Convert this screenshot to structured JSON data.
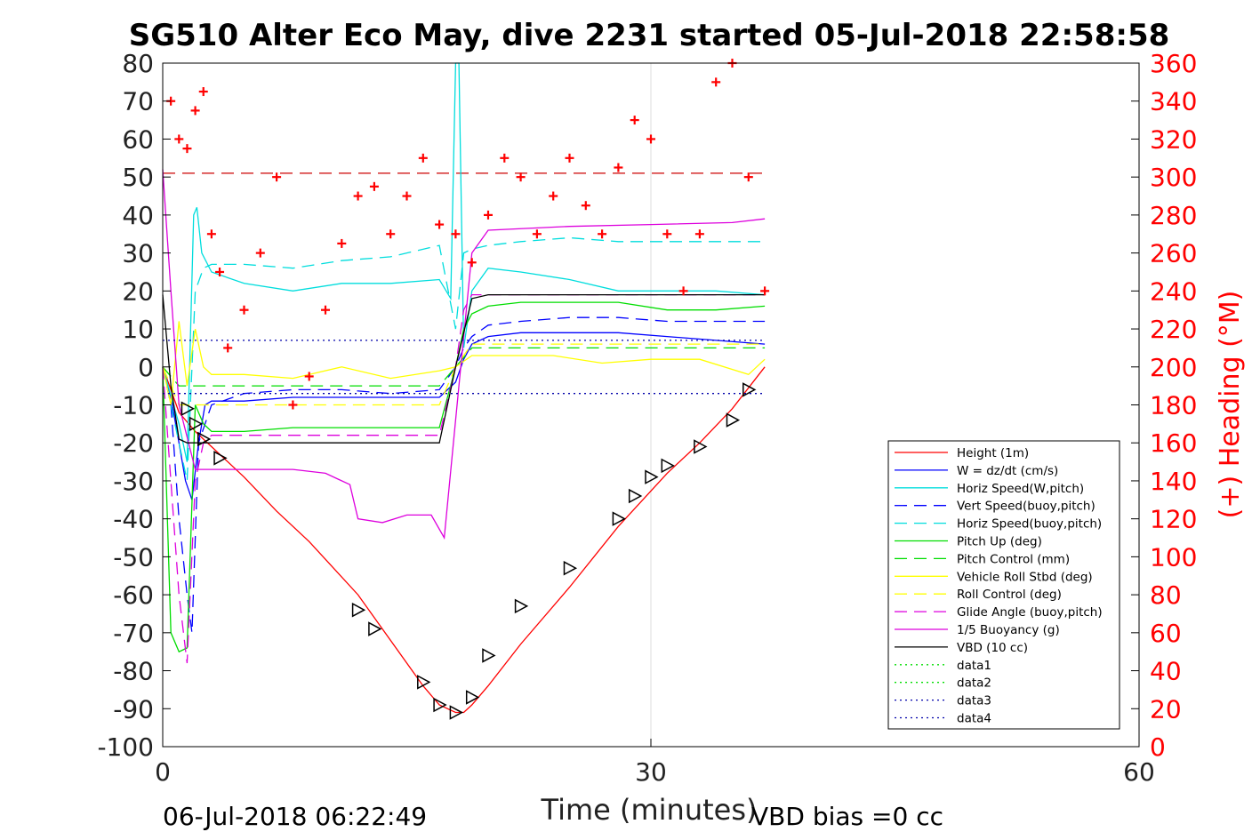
{
  "chart_data": {
    "type": "line",
    "title": "SG510 Alter Eco May, dive 2231 started 05-Jul-2018 22:58:58",
    "xlabel": "Time (minutes)",
    "ylabel": "",
    "y2label": "(+) Heading (°M)",
    "xlim": [
      0,
      60
    ],
    "ylim": [
      -100,
      80
    ],
    "y2lim": [
      0,
      360
    ],
    "xticks": [
      "0",
      "30",
      "60"
    ],
    "yticks": [
      "80",
      "70",
      "60",
      "50",
      "40",
      "30",
      "20",
      "10",
      "0",
      "-10",
      "-20",
      "-30",
      "-40",
      "-50",
      "-60",
      "-70",
      "-80",
      "-90",
      "-100"
    ],
    "y2ticks": [
      "360",
      "340",
      "320",
      "300",
      "280",
      "260",
      "240",
      "220",
      "200",
      "180",
      "160",
      "140",
      "120",
      "100",
      "80",
      "60",
      "40",
      "20",
      "0"
    ],
    "grid": "x-only",
    "legend_position": "lower-right",
    "footer_left": "06-Jul-2018 06:22:49",
    "footer_right": "VBD bias =0 cc",
    "colors": {
      "heading": "#ff0000"
    },
    "series": [
      {
        "name": "Height (1m)",
        "color": "#ff0000",
        "style": "solid",
        "x": [
          0,
          1,
          2,
          3,
          5,
          7,
          9,
          12,
          14,
          16,
          17,
          18,
          18.5,
          19,
          20,
          22,
          25,
          28,
          31,
          33,
          35,
          37
        ],
        "y": [
          0,
          -12,
          -17,
          -21,
          -29,
          -38,
          -46,
          -60,
          -72,
          -84,
          -89,
          -91,
          -91,
          -89,
          -84,
          -73,
          -58,
          -42,
          -28,
          -20,
          -11,
          0
        ]
      },
      {
        "name": "W = dz/dt (cm/s)",
        "color": "#0000ff",
        "style": "solid",
        "x": [
          0,
          0.5,
          1,
          1.4,
          1.8,
          2.2,
          2.6,
          3,
          5,
          8,
          11,
          14,
          17,
          17.5,
          18,
          18.5,
          19,
          20,
          22,
          25,
          28,
          31,
          34,
          37
        ],
        "y": [
          0,
          -8,
          -20,
          -30,
          -35,
          -20,
          -10,
          -9,
          -9,
          -8,
          -8,
          -8,
          -8,
          -6,
          -4,
          2,
          6,
          8,
          9,
          9,
          9,
          8,
          7,
          6
        ]
      },
      {
        "name": "Horiz Speed(W,pitch)",
        "color": "#00dddd",
        "style": "solid",
        "x": [
          0,
          1,
          1.5,
          1.9,
          2.1,
          2.4,
          3,
          5,
          8,
          11,
          14,
          17,
          17.7,
          18,
          18.2,
          18.5,
          19,
          20,
          22,
          25,
          28,
          31,
          34,
          37
        ],
        "y": [
          0,
          -15,
          -25,
          40,
          42,
          30,
          25,
          22,
          20,
          22,
          22,
          23,
          18,
          80,
          80,
          5,
          20,
          26,
          25,
          23,
          20,
          20,
          20,
          19
        ]
      },
      {
        "name": "Vert Speed(buoy,pitch)",
        "color": "#0000ff",
        "style": "dash",
        "x": [
          0,
          0.5,
          1,
          1.5,
          1.8,
          2.2,
          3,
          5,
          8,
          11,
          14,
          17,
          18,
          18.5,
          19,
          20,
          22,
          25,
          28,
          31,
          34,
          37
        ],
        "y": [
          0,
          -10,
          -40,
          -60,
          -70,
          -20,
          -10,
          -7,
          -6,
          -6,
          -7,
          -6,
          0,
          5,
          8,
          11,
          12,
          13,
          13,
          12,
          12,
          12
        ]
      },
      {
        "name": "Horiz Speed(buoy,pitch)",
        "color": "#00dddd",
        "style": "dash",
        "x": [
          0,
          1,
          1.5,
          2,
          2.5,
          3,
          5,
          8,
          11,
          14,
          17,
          18,
          18.5,
          19,
          20,
          22,
          25,
          28,
          31,
          34,
          37
        ],
        "y": [
          0,
          -20,
          -30,
          20,
          26,
          27,
          27,
          26,
          28,
          29,
          32,
          10,
          30,
          31,
          32,
          33,
          34,
          33,
          33,
          33,
          33
        ]
      },
      {
        "name": "Pitch Up (deg)",
        "color": "#00dd00",
        "style": "solid",
        "x": [
          0,
          0.5,
          1,
          1.5,
          2,
          2.5,
          3,
          5,
          8,
          11,
          14,
          17,
          18,
          18.5,
          19,
          20,
          22,
          25,
          28,
          31,
          34,
          37
        ],
        "y": [
          0,
          -70,
          -75,
          -74,
          -10,
          -15,
          -17,
          -17,
          -16,
          -16,
          -16,
          -16,
          0,
          10,
          14,
          16,
          17,
          17,
          17,
          15,
          15,
          16
        ]
      },
      {
        "name": "Pitch Control (mm)",
        "color": "#00dd00",
        "style": "dash",
        "x": [
          0,
          1,
          2,
          3,
          17,
          18,
          19,
          37
        ],
        "y": [
          0,
          -5,
          -5,
          -5,
          -5,
          0,
          5,
          5
        ]
      },
      {
        "name": "Vehicle Roll Stbd (deg)",
        "color": "#ffff00",
        "style": "solid",
        "x": [
          0,
          0.5,
          1,
          1.5,
          2,
          2.5,
          3,
          5,
          8,
          11,
          14,
          17,
          18,
          19,
          21,
          24,
          27,
          30,
          33,
          36,
          37
        ],
        "y": [
          0,
          -10,
          12,
          -5,
          10,
          0,
          -2,
          -2,
          -3,
          0,
          -3,
          -1,
          0,
          3,
          3,
          3,
          1,
          2,
          2,
          -2,
          2
        ]
      },
      {
        "name": "Roll Control (deg)",
        "color": "#ffff00",
        "style": "dash",
        "x": [
          0,
          1,
          2,
          3,
          17,
          18,
          19,
          37
        ],
        "y": [
          0,
          -10,
          -10,
          -10,
          -10,
          0,
          6,
          6
        ]
      },
      {
        "name": "Glide Angle (buoy,pitch)",
        "color": "#dd00dd",
        "style": "dash",
        "x": [
          0,
          1,
          1.5,
          2,
          2.5,
          3,
          17,
          18,
          18.5,
          19,
          37
        ],
        "y": [
          0,
          -60,
          -78,
          -30,
          -20,
          -18,
          -18,
          0,
          15,
          19,
          19
        ]
      },
      {
        "name": "1/5 Buoyancy (g)",
        "color": "#dd00dd",
        "style": "solid",
        "x": [
          0,
          0.5,
          1,
          2,
          3,
          8,
          10,
          11.5,
          12,
          13.5,
          15,
          16.5,
          17.3,
          18.2,
          19,
          20,
          25,
          30,
          35,
          37
        ],
        "y": [
          52,
          20,
          -10,
          -27,
          -27,
          -27,
          -28,
          -31,
          -40,
          -41,
          -39,
          -39,
          -45,
          -5,
          30,
          36,
          37,
          37.5,
          38,
          39
        ]
      },
      {
        "name": "VBD (10 cc)",
        "color": "#000000",
        "style": "solid",
        "x": [
          0,
          0.5,
          1,
          1.5,
          2,
          17,
          18,
          19,
          20,
          37
        ],
        "y": [
          19,
          -5,
          -19,
          -20,
          -20,
          -20,
          0,
          18,
          19,
          19
        ]
      },
      {
        "name": "data1",
        "color": "#00dd00",
        "style": "dot",
        "x": [],
        "y": []
      },
      {
        "name": "data2",
        "color": "#00dd00",
        "style": "dot",
        "x": [],
        "y": []
      },
      {
        "name": "data3",
        "color": "#0000aa",
        "style": "dot",
        "x": [
          0,
          37
        ],
        "y": [
          7,
          7
        ]
      },
      {
        "name": "data4",
        "color": "#0000aa",
        "style": "dot",
        "x": [
          0,
          37
        ],
        "y": [
          -7,
          -7
        ]
      }
    ],
    "reference_lines": [
      {
        "axis": "y2",
        "value": 302,
        "color": "#cc0000",
        "style": "dash",
        "x": [
          0,
          37
        ]
      }
    ],
    "heading": {
      "axis": "y2",
      "marker": "+",
      "color": "#ff0000",
      "x": [
        0.5,
        1,
        1.5,
        2,
        2.5,
        3,
        3.5,
        4,
        5,
        6,
        7,
        8,
        9,
        10,
        11,
        12,
        13,
        14,
        15,
        16,
        17,
        18,
        19,
        20,
        21,
        22,
        23,
        24,
        25,
        26,
        27,
        28,
        29,
        30,
        31,
        32,
        33,
        34,
        35,
        36,
        37
      ],
      "y": [
        340,
        320,
        315,
        335,
        345,
        270,
        250,
        210,
        230,
        260,
        300,
        180,
        195,
        230,
        265,
        290,
        295,
        270,
        290,
        310,
        275,
        270,
        255,
        280,
        310,
        300,
        270,
        290,
        310,
        285,
        270,
        305,
        330,
        320,
        270,
        240,
        270,
        350,
        360,
        300,
        240
      ]
    },
    "markers": {
      "marker": "triangle-right",
      "color": "#000000",
      "x": [
        1.5,
        2,
        2.5,
        3.5,
        12,
        13,
        16,
        17,
        18,
        19,
        20,
        22,
        25,
        28,
        29,
        30,
        31,
        33,
        35,
        36
      ],
      "y": [
        -11,
        -15,
        -19,
        -24,
        -64,
        -69,
        -83,
        -89,
        -91,
        -87,
        -76,
        -63,
        -53,
        -40,
        -34,
        -29,
        -26,
        -21,
        -14,
        -6
      ]
    }
  }
}
